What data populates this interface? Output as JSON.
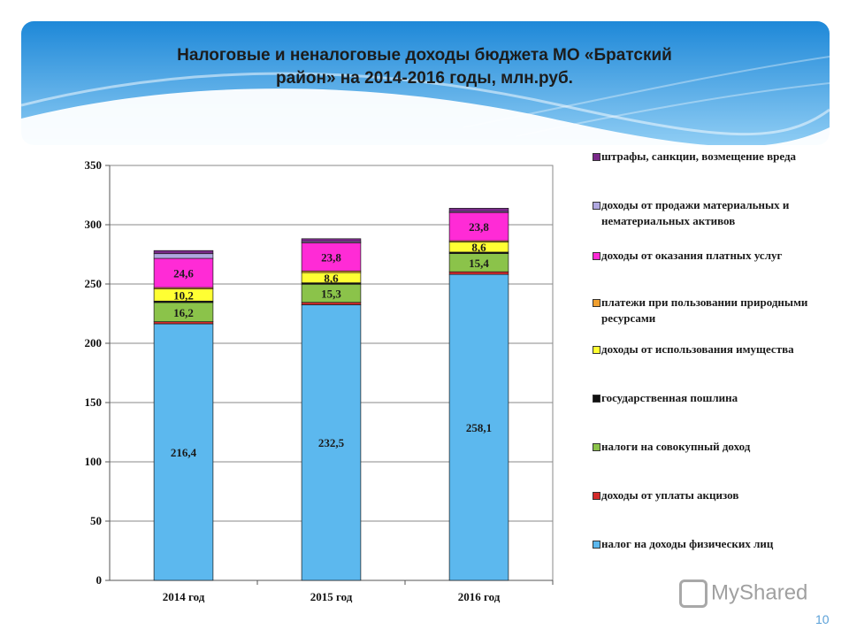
{
  "slide": {
    "title_line1": "Налоговые и неналоговые доходы бюджета МО «Братский",
    "title_line2": "район» на 2014-2016 годы, млн.руб.",
    "page_number": "10",
    "watermark": "MyShared"
  },
  "chart_data": {
    "type": "bar",
    "stacked": true,
    "title": "Налоговые и неналоговые доходы бюджета МО «Братский район» на 2014-2016 годы, млн.руб.",
    "categories": [
      "2014 год",
      "2015 год",
      "2016 год"
    ],
    "ylim": [
      0,
      350
    ],
    "yticks": [
      0,
      50,
      100,
      150,
      200,
      250,
      300,
      350
    ],
    "grid": true,
    "legend_position": "right",
    "series": [
      {
        "name": "налог на доходы физических лиц",
        "color": "#5cb8ee",
        "values": [
          216.4,
          232.5,
          258.1
        ],
        "labels": [
          "216,4",
          "232,5",
          "258,1"
        ]
      },
      {
        "name": "доходы от уплаты акцизов",
        "color": "#d42b2b",
        "values": [
          1.8,
          2.0,
          2.2
        ],
        "labels": [
          "",
          "",
          ""
        ]
      },
      {
        "name": "налоги на совокупный доход",
        "color": "#8bc34a",
        "values": [
          16.2,
          15.3,
          15.4
        ],
        "labels": [
          "16,2",
          "15,3",
          "15,4"
        ]
      },
      {
        "name": "государственная пошлина",
        "color": "#111111",
        "values": [
          1.2,
          1.2,
          1.2
        ],
        "labels": [
          "",
          "",
          ""
        ]
      },
      {
        "name": "доходы от использования имущества",
        "color": "#ffff33",
        "values": [
          10.2,
          8.6,
          8.6
        ],
        "labels": [
          "10,2",
          "8,6",
          "8,6"
        ]
      },
      {
        "name": "платежи при пользовании природными ресурсами",
        "color": "#f0a030",
        "values": [
          1.2,
          1.4,
          1.0
        ],
        "labels": [
          "",
          "",
          ""
        ]
      },
      {
        "name": "доходы от оказания платных услуг",
        "color": "#ff2bd6",
        "values": [
          24.6,
          23.8,
          23.8
        ],
        "labels": [
          "24,6",
          "23,8",
          "23,8"
        ]
      },
      {
        "name": "доходы от продажи материальных и нематериальных активов",
        "color": "#b0a8e0",
        "values": [
          4.0,
          1.0,
          0.8
        ],
        "labels": [
          "",
          "",
          ""
        ]
      },
      {
        "name": "штрафы, санкции, возмещение вреда",
        "color": "#7a2a8a",
        "values": [
          2.6,
          2.4,
          2.8
        ],
        "labels": [
          "",
          "",
          ""
        ]
      }
    ],
    "legend_order": [
      "штрафы, санкции, возмещение вреда",
      "доходы от продажи материальных и нематериальных активов",
      "доходы от оказания платных услуг",
      "платежи при пользовании природными ресурсами",
      "доходы от использования имущества",
      "государственная пошлина",
      "налоги на совокупный доход",
      "доходы от уплаты акцизов",
      "налог на доходы физических лиц"
    ]
  }
}
